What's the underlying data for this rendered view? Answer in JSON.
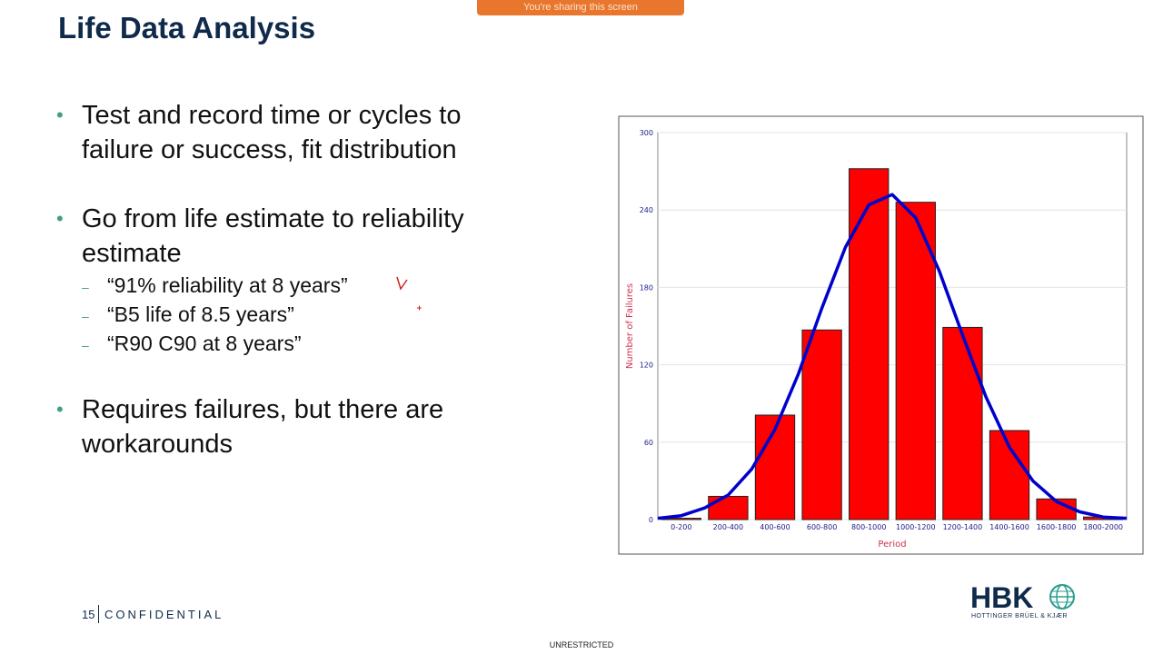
{
  "banner": "You're sharing this screen",
  "title": "Life Data Analysis",
  "bullets": [
    {
      "text": "Test and record time or cycles to failure or success, fit distribution",
      "sub": []
    },
    {
      "text": "Go from life estimate to reliability estimate",
      "sub": [
        "“91% reliability at 8 years”",
        "“B5 life of 8.5 years”",
        "“R90 C90 at 8 years”"
      ]
    },
    {
      "text": "Requires failures, but there are workarounds",
      "sub": []
    }
  ],
  "footer": {
    "page": "15",
    "label": "CONFIDENTIAL",
    "classification": "UNRESTRICTED"
  },
  "logo": {
    "mark": "HBK",
    "name": "HOTTINGER BRÜEL & KJÆR"
  },
  "chart_data": {
    "type": "bar",
    "x_label": "Period",
    "y_label": "Number of Failures",
    "categories": [
      "0-200",
      "200-400",
      "400-600",
      "600-800",
      "800-1000",
      "1000-1200",
      "1200-1400",
      "1400-1600",
      "1600-1800",
      "1800-2000"
    ],
    "values": [
      1,
      18,
      81,
      147,
      272,
      246,
      149,
      69,
      16,
      2
    ],
    "color": "#ff0000",
    "fit": {
      "x": [
        0,
        100,
        200,
        300,
        400,
        500,
        600,
        700,
        800,
        900,
        1000,
        1100,
        1200,
        1300,
        1400,
        1500,
        1600,
        1700,
        1800,
        1900,
        2000
      ],
      "values": [
        1,
        3,
        9,
        19,
        39,
        70,
        113,
        164,
        211,
        244,
        252,
        234,
        193,
        143,
        95,
        56,
        30,
        14,
        6,
        2,
        1
      ],
      "color": "#0000cc"
    },
    "xlim": [
      0,
      2000
    ],
    "ylim": [
      0,
      300
    ],
    "yticks": [
      0,
      60,
      120,
      180,
      240,
      300
    ],
    "grid": true
  }
}
